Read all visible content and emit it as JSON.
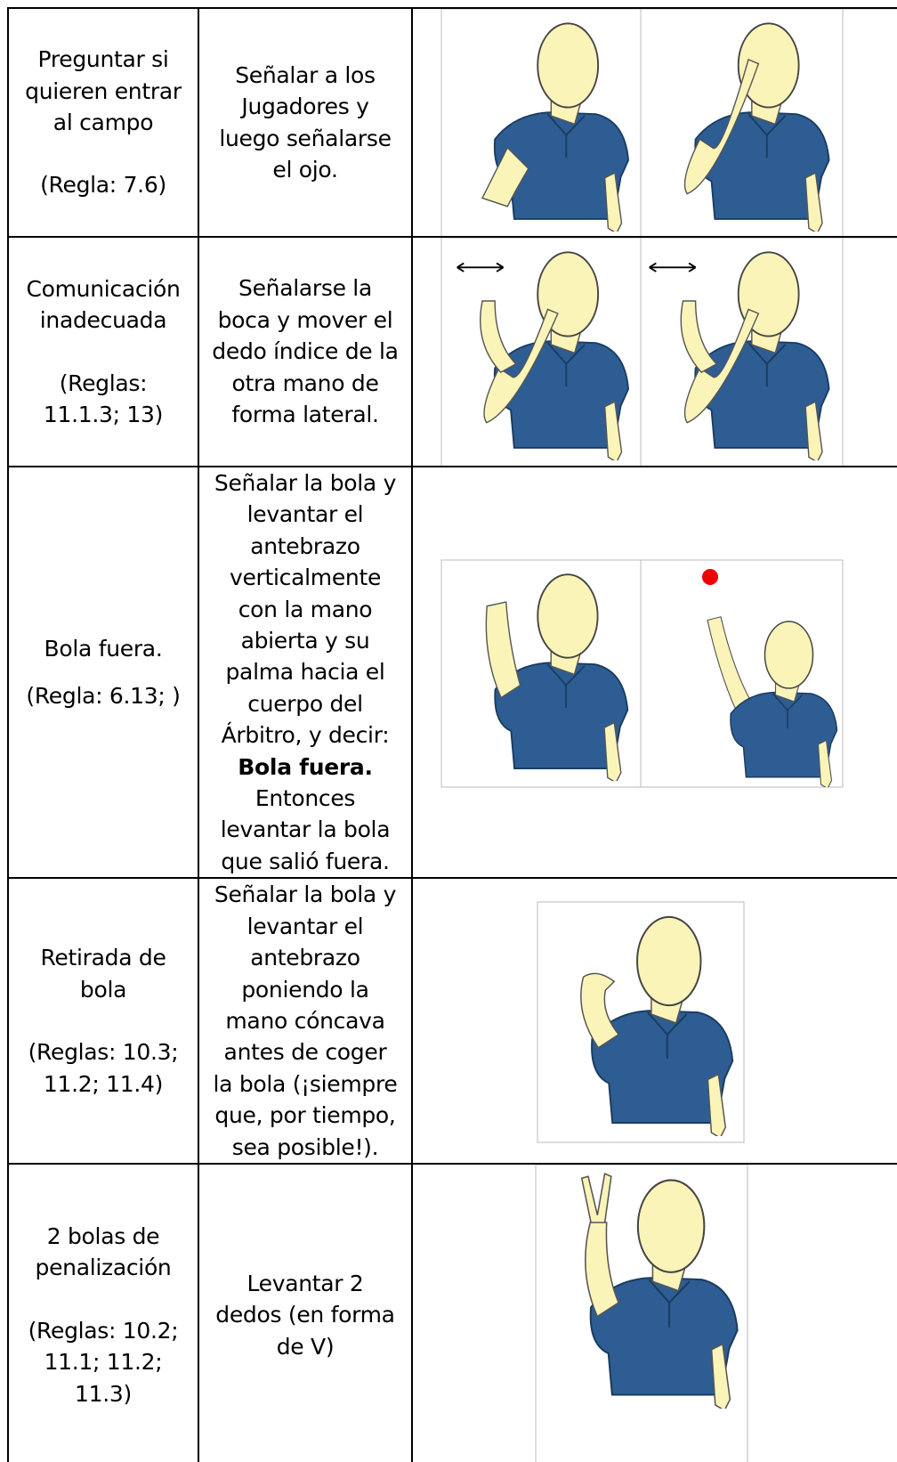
{
  "rows": [
    {
      "label": [
        "Preguntar si",
        "quieren entrar",
        "al campo"
      ],
      "rule": [
        "(Regla: 7.6)"
      ],
      "instruction": [
        "Señalar a los",
        "Jugadores y",
        "luego señalarse",
        "el ojo."
      ]
    },
    {
      "label": [
        "Comunicación",
        "inadecuada"
      ],
      "rule": [
        "(Reglas:",
        "11.1.3; 13)"
      ],
      "instruction": [
        "Señalarse la",
        "boca y mover el",
        "dedo índice de la",
        "otra mano de",
        "forma lateral."
      ]
    },
    {
      "label": [
        "Bola fuera."
      ],
      "rule": [
        "(Regla: 6.13; )"
      ],
      "instruction": [
        "Señalar la bola y",
        "levantar el",
        "antebrazo",
        "verticalmente",
        "con la mano",
        "abierta y su",
        "palma hacia el",
        "cuerpo del",
        "Árbitro, y decir:",
        "Bola fuera.",
        "Entonces",
        "levantar la bola",
        "que salió fuera."
      ]
    },
    {
      "label": [
        "Retirada de",
        "bola"
      ],
      "rule": [
        "(Reglas: 10.3;",
        "11.2; 11.4)"
      ],
      "instruction": [
        "Señalar la bola y",
        "levantar el",
        "antebrazo",
        "poniendo la",
        "mano cóncava",
        "antes de coger",
        "la bola (¡siempre",
        "que, por tiempo,",
        "sea posible!)."
      ]
    },
    {
      "label": [
        "2 bolas de",
        "penalización"
      ],
      "rule": [
        "(Reglas: 10.2;",
        "11.1; 11.2;",
        "11.3)"
      ],
      "instruction": [
        "Levantar 2",
        "dedos (en forma",
        "de V)"
      ]
    }
  ]
}
